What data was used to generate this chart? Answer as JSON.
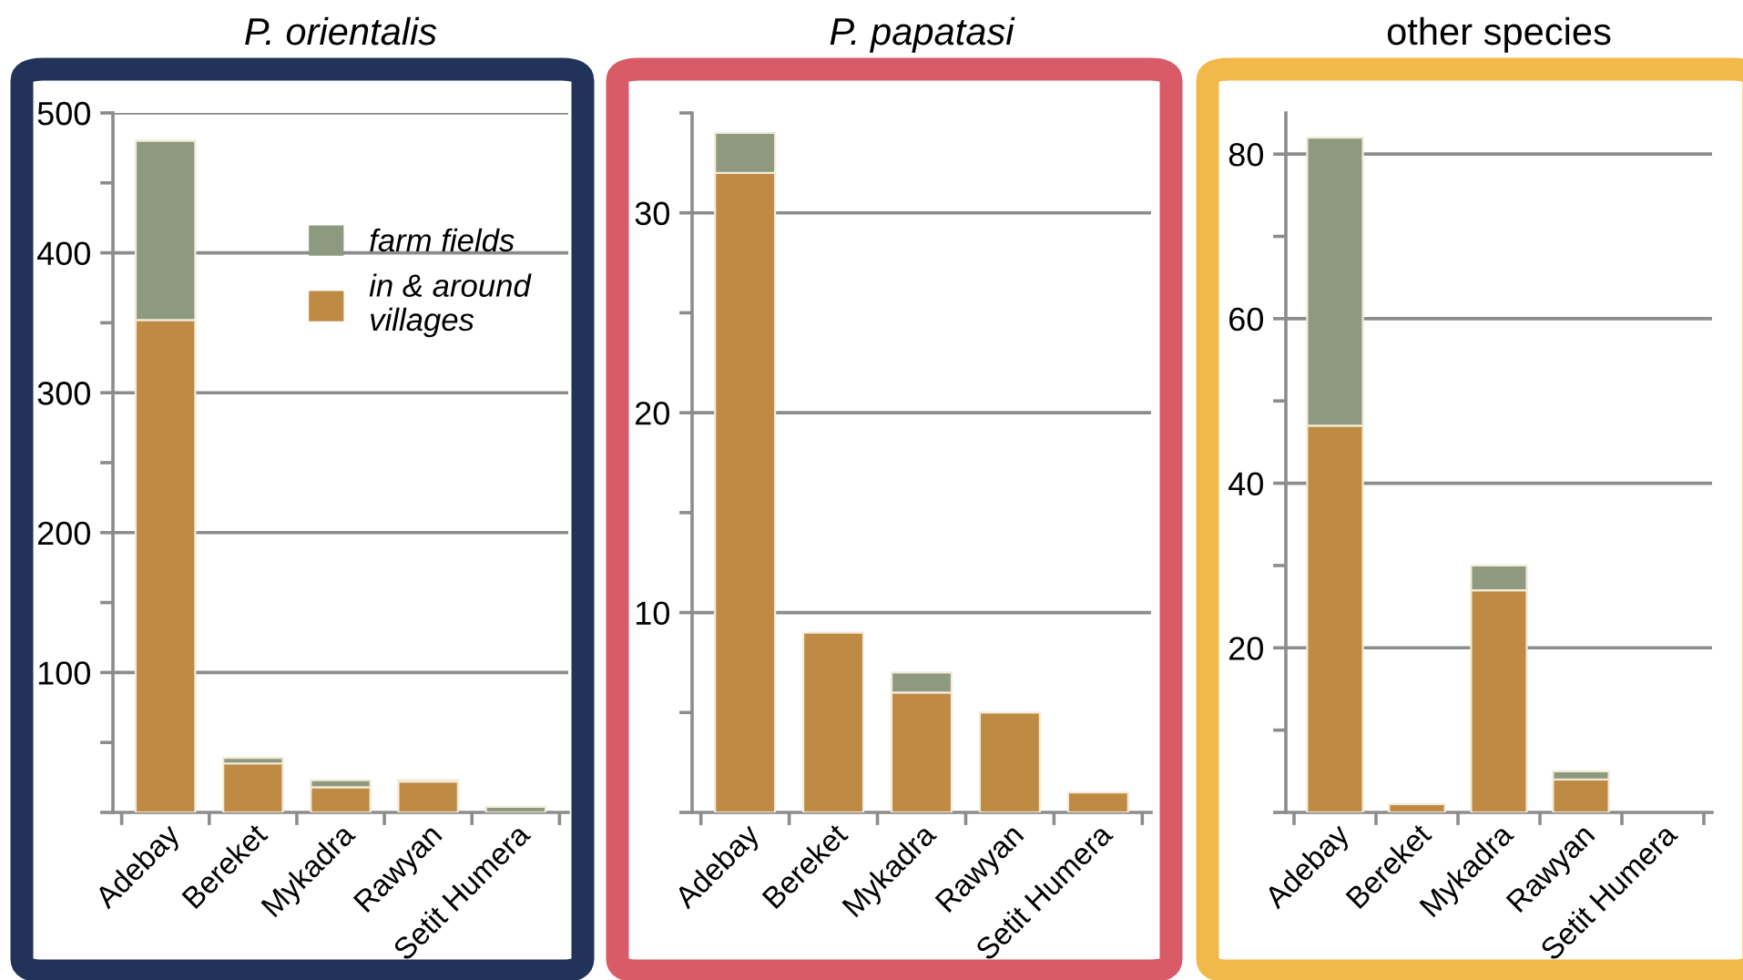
{
  "chart_data": [
    {
      "type": "bar",
      "stacked": true,
      "title": "P. orientalis",
      "categories": [
        "Adebay",
        "Bereket",
        "Mykadra",
        "Rawyan",
        "Setit Humera"
      ],
      "series": [
        {
          "name": "in & around villages",
          "color": "#bf8a43",
          "values": [
            352,
            35,
            18,
            22,
            0
          ]
        },
        {
          "name": "farm fields",
          "color": "#8e9a7f",
          "values": [
            128,
            4,
            5,
            1,
            4
          ]
        }
      ],
      "ylim": [
        0,
        500
      ],
      "yticks": [
        {
          "value": 0,
          "label": null
        },
        {
          "value": 50,
          "label": null
        },
        100,
        {
          "value": 150,
          "label": null
        },
        200,
        {
          "value": 250,
          "label": null
        },
        300,
        {
          "value": 350,
          "label": null
        },
        400,
        {
          "value": 450,
          "label": null
        },
        500
      ],
      "grid": "y",
      "legend": "top right"
    },
    {
      "type": "bar",
      "stacked": true,
      "title": "P. papatasi",
      "categories": [
        "Adebay",
        "Bereket",
        "Mykadra",
        "Rawyan",
        "Setit Humera"
      ],
      "series": [
        {
          "color": "#bf8a43",
          "values": [
            32,
            9,
            6,
            5,
            1
          ]
        },
        {
          "color": "#8e9a7f",
          "values": [
            2,
            0,
            1,
            0,
            0
          ]
        }
      ],
      "ylim": [
        0,
        35
      ],
      "yticks": [
        {
          "value": 0,
          "label": null
        },
        {
          "value": 5,
          "label": null
        },
        10,
        {
          "value": 15,
          "label": null
        },
        20,
        {
          "value": 25,
          "label": null
        },
        30,
        {
          "value": 35,
          "label": null
        }
      ],
      "grid": "y"
    },
    {
      "type": "bar",
      "stacked": true,
      "title": "other species",
      "categories": [
        "Adebay",
        "Bereket",
        "Mykadra",
        "Rawyan",
        "Setit Humera"
      ],
      "series": [
        {
          "color": "#bf8a43",
          "values": [
            47,
            1,
            27,
            4,
            0
          ]
        },
        {
          "color": "#8e9a7f",
          "values": [
            35,
            0,
            3,
            1,
            0
          ]
        }
      ],
      "ylim": [
        0,
        85
      ],
      "yticks": [
        {
          "value": 0,
          "label": null
        },
        {
          "value": 10,
          "label": null
        },
        20,
        {
          "value": 30,
          "label": null
        },
        40,
        {
          "value": 50,
          "label": null
        },
        60,
        {
          "value": 70,
          "label": null
        },
        80
      ],
      "grid": "y"
    }
  ]
}
